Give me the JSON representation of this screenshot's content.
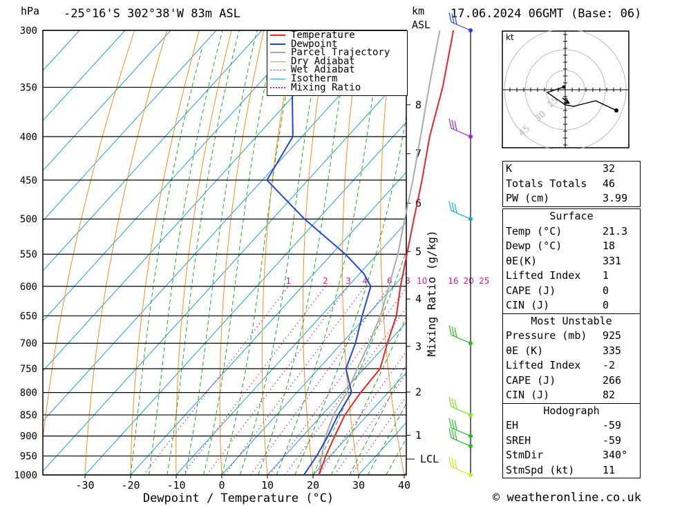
{
  "header": {
    "hpa_label": "hPa",
    "location": "-25°16'S 302°38'W 83m ASL",
    "km_label": "km",
    "asl_label": "ASL",
    "datetime": "17.06.2024 06GMT (Base: 06)"
  },
  "chart_data": {
    "type": "skew-t",
    "title": "-25°16'S 302°38'W 83m ASL",
    "xlabel": "Dewpoint / Temperature (°C)",
    "ylabel": "hPa",
    "secondary_ylabel": "Mixing Ratio (g/kg)",
    "xlim": [
      -40,
      40
    ],
    "ylim": [
      1000,
      300
    ],
    "pressure_levels": [
      300,
      350,
      400,
      450,
      500,
      550,
      600,
      650,
      700,
      750,
      800,
      850,
      900,
      950,
      1000
    ],
    "x_ticks": [
      -30,
      -20,
      -10,
      0,
      10,
      20,
      30,
      40
    ],
    "km_ticks": [
      {
        "km": "8",
        "p": 367
      },
      {
        "km": "7",
        "p": 419
      },
      {
        "km": "6",
        "p": 479
      },
      {
        "km": "5",
        "p": 546
      },
      {
        "km": "4",
        "p": 621
      },
      {
        "km": "3",
        "p": 706
      },
      {
        "km": "2",
        "p": 799
      },
      {
        "km": "1",
        "p": 898
      }
    ],
    "lcl": {
      "label": "LCL",
      "p": 958
    },
    "mixing_ratio_labels": [
      "1",
      "2",
      "3",
      "4",
      "6",
      "8",
      "10",
      "16",
      "20",
      "25"
    ],
    "mixing_ratio_values": [
      1,
      2,
      3,
      4,
      6,
      8,
      10,
      16,
      20,
      25
    ],
    "series": [
      {
        "name": "Temperature",
        "color": "#ee2222",
        "points": [
          [
            1000,
            21.3
          ],
          [
            950,
            19
          ],
          [
            900,
            17
          ],
          [
            850,
            15
          ],
          [
            800,
            14
          ],
          [
            750,
            13.5
          ],
          [
            700,
            10
          ],
          [
            650,
            6.5
          ],
          [
            600,
            1.5
          ],
          [
            550,
            -3.5
          ],
          [
            500,
            -9
          ],
          [
            450,
            -15
          ],
          [
            400,
            -22
          ],
          [
            350,
            -29
          ],
          [
            300,
            -38
          ]
        ]
      },
      {
        "name": "Dewpoint",
        "color": "#2244dd",
        "points": [
          [
            1000,
            18
          ],
          [
            950,
            17
          ],
          [
            900,
            15.5
          ],
          [
            850,
            13.5
          ],
          [
            800,
            12
          ],
          [
            750,
            6
          ],
          [
            700,
            3
          ],
          [
            650,
            -1
          ],
          [
            600,
            -5
          ],
          [
            580,
            -9
          ],
          [
            550,
            -17
          ],
          [
            500,
            -33
          ],
          [
            450,
            -49
          ],
          [
            400,
            -52
          ],
          [
            350,
            -62
          ],
          [
            300,
            -70
          ]
        ]
      },
      {
        "name": "Parcel Trajectory",
        "color": "#aaaaaa",
        "points": [
          [
            1000,
            21.3
          ],
          [
            958,
            18.6
          ],
          [
            900,
            15
          ],
          [
            850,
            12.5
          ],
          [
            800,
            11
          ],
          [
            750,
            8.5
          ],
          [
            700,
            6
          ],
          [
            650,
            3
          ],
          [
            600,
            -1
          ],
          [
            550,
            -5.5
          ],
          [
            500,
            -11
          ],
          [
            450,
            -17
          ],
          [
            400,
            -24
          ],
          [
            350,
            -32
          ],
          [
            300,
            -41
          ]
        ]
      }
    ],
    "legend": [
      {
        "label": "Temperature",
        "color": "#ee2222",
        "style": "solid"
      },
      {
        "label": "Dewpoint",
        "color": "#2244dd",
        "style": "solid"
      },
      {
        "label": "Parcel Trajectory",
        "color": "#aaaaaa",
        "style": "solid"
      },
      {
        "label": "Dry Adiabat",
        "color": "#ff8c1a",
        "style": "solid"
      },
      {
        "label": "Wet Adiabat",
        "color": "#22aa22",
        "style": "dashed"
      },
      {
        "label": "Isotherm",
        "color": "#1e9ee0",
        "style": "solid"
      },
      {
        "label": "Mixing Ratio",
        "color": "#d02080",
        "style": "dotted"
      }
    ],
    "wind_profile": [
      {
        "p": 300,
        "color": "#2244dd"
      },
      {
        "p": 400,
        "color": "#aa22cc"
      },
      {
        "p": 500,
        "color": "#11aacc"
      },
      {
        "p": 700,
        "color": "#22bb22"
      },
      {
        "p": 850,
        "color": "#88dd22"
      },
      {
        "p": 900,
        "color": "#22bb22"
      },
      {
        "p": 925,
        "color": "#22bb22"
      },
      {
        "p": 1000,
        "color": "#dddd22"
      }
    ]
  },
  "hodograph": {
    "unit_label": "kt",
    "ring_labels": [
      "15",
      "30",
      "45"
    ]
  },
  "indices": [
    {
      "key": "K",
      "value": "32"
    },
    {
      "key": "Totals Totals",
      "value": "46"
    },
    {
      "key": "PW (cm)",
      "value": "3.99"
    }
  ],
  "surface": {
    "title": "Surface",
    "rows": [
      {
        "key": "Temp (°C)",
        "value": "21.3"
      },
      {
        "key": "Dewp (°C)",
        "value": "18"
      },
      {
        "key": "θE(K)",
        "value": "331"
      },
      {
        "key": "Lifted Index",
        "value": "1"
      },
      {
        "key": "CAPE (J)",
        "value": "0"
      },
      {
        "key": "CIN (J)",
        "value": "0"
      }
    ]
  },
  "most_unstable": {
    "title": "Most Unstable",
    "rows": [
      {
        "key": "Pressure (mb)",
        "value": "925"
      },
      {
        "key": "θE (K)",
        "value": "335"
      },
      {
        "key": "Lifted Index",
        "value": "-2"
      },
      {
        "key": "CAPE (J)",
        "value": "266"
      },
      {
        "key": "CIN (J)",
        "value": "82"
      }
    ]
  },
  "hodograph_table": {
    "title": "Hodograph",
    "rows": [
      {
        "key": "EH",
        "value": "-59"
      },
      {
        "key": "SREH",
        "value": "-59"
      },
      {
        "key": "StmDir",
        "value": "340°"
      },
      {
        "key": "StmSpd (kt)",
        "value": "11"
      }
    ]
  },
  "footer": {
    "copyright": "© weatheronline.co.uk"
  }
}
